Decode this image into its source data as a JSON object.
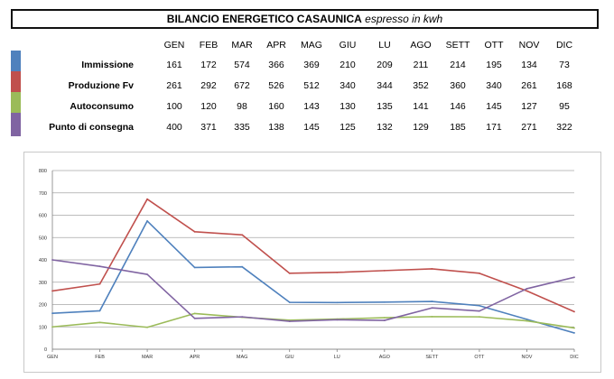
{
  "table": {
    "title_main": "BILANCIO ENERGETICO CASAUNICA",
    "title_sub": "espresso in kwh",
    "months": [
      "GEN",
      "FEB",
      "MAR",
      "APR",
      "MAG",
      "GIU",
      "LU",
      "AGO",
      "SETT",
      "OTT",
      "NOV",
      "DIC"
    ],
    "rows": [
      {
        "label": "Immissione",
        "color": "#4f81bd",
        "values": [
          161,
          172,
          574,
          366,
          369,
          210,
          209,
          211,
          214,
          195,
          134,
          73
        ]
      },
      {
        "label": "Produzione Fv",
        "color": "#c0504d",
        "values": [
          261,
          292,
          672,
          526,
          512,
          340,
          344,
          352,
          360,
          340,
          261,
          168
        ]
      },
      {
        "label": "Autoconsumo",
        "color": "#9bbb59",
        "values": [
          100,
          120,
          98,
          160,
          143,
          130,
          135,
          141,
          146,
          145,
          127,
          95
        ]
      },
      {
        "label": "Punto di consegna",
        "color": "#8064a2",
        "values": [
          400,
          371,
          335,
          138,
          145,
          125,
          132,
          129,
          185,
          171,
          271,
          322
        ]
      }
    ]
  },
  "chart_data": {
    "type": "line",
    "categories": [
      "GEN",
      "FEB",
      "MAR",
      "APR",
      "MAG",
      "GIU",
      "LU",
      "AGO",
      "SETT",
      "OTT",
      "NOV",
      "DIC"
    ],
    "series": [
      {
        "name": "Immissione",
        "color": "#4f81bd",
        "values": [
          161,
          172,
          574,
          366,
          369,
          210,
          209,
          211,
          214,
          195,
          134,
          73
        ]
      },
      {
        "name": "Produzione Fv",
        "color": "#c0504d",
        "values": [
          261,
          292,
          672,
          526,
          512,
          340,
          344,
          352,
          360,
          340,
          261,
          168
        ]
      },
      {
        "name": "Autoconsumo",
        "color": "#9bbb59",
        "values": [
          100,
          120,
          98,
          160,
          143,
          130,
          135,
          141,
          146,
          145,
          127,
          95
        ]
      },
      {
        "name": "Punto di consegna",
        "color": "#8064a2",
        "values": [
          400,
          371,
          335,
          138,
          145,
          125,
          132,
          129,
          185,
          171,
          271,
          322
        ]
      }
    ],
    "title": "",
    "xlabel": "",
    "ylabel": "",
    "ylim": [
      0,
      800
    ],
    "yticks": [
      0,
      100,
      200,
      300,
      400,
      500,
      600,
      700,
      800
    ],
    "grid": true,
    "legend": "none"
  }
}
